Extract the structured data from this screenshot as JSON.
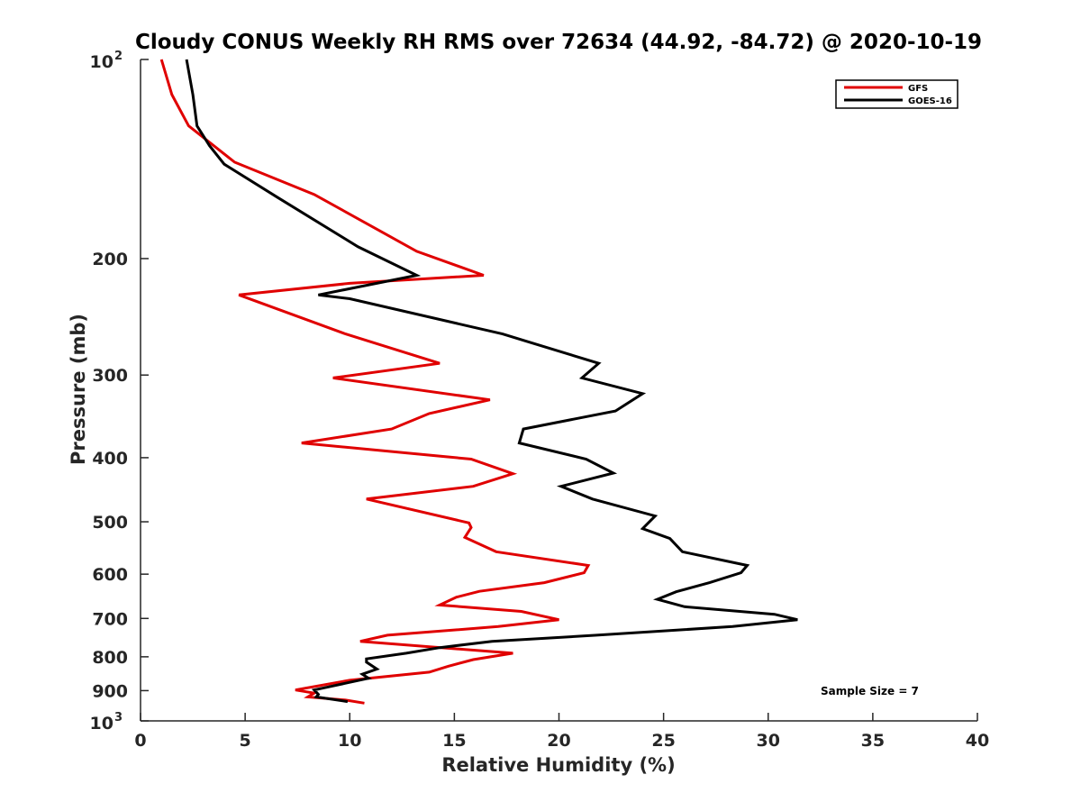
{
  "chart_data": {
    "type": "line",
    "title": "Cloudy CONUS Weekly RH RMS over 72634 (44.92, -84.72) @ 2020-10-19",
    "xlabel": "Relative Humidity (%)",
    "ylabel": "Pressure (mb)",
    "xlim": [
      0,
      40
    ],
    "ylim": [
      100,
      1000
    ],
    "y_scale": "log",
    "y_reversed": true,
    "grid": false,
    "legend_placement": "top-right",
    "x_ticks": [
      "0",
      "5",
      "10",
      "15",
      "20",
      "25",
      "30",
      "35",
      "40"
    ],
    "y_ticks": [
      {
        "value": 100,
        "base": "10",
        "exp": "2"
      },
      {
        "value": 200,
        "label": "200"
      },
      {
        "value": 300,
        "label": "300"
      },
      {
        "value": 400,
        "label": "400"
      },
      {
        "value": 500,
        "label": "500"
      },
      {
        "value": 600,
        "label": "600"
      },
      {
        "value": 700,
        "label": "700"
      },
      {
        "value": 800,
        "label": "800"
      },
      {
        "value": 900,
        "label": "900"
      },
      {
        "value": 1000,
        "base": "10",
        "exp": "3"
      }
    ],
    "series": [
      {
        "name": "GFS",
        "color": "#e00000",
        "points": [
          [
            1.0,
            100
          ],
          [
            1.5,
            113
          ],
          [
            2.3,
            126
          ],
          [
            4.5,
            143
          ],
          [
            8.3,
            160
          ],
          [
            13.2,
            195
          ],
          [
            16.4,
            212
          ],
          [
            10.0,
            218
          ],
          [
            4.7,
            227
          ],
          [
            9.8,
            260
          ],
          [
            14.3,
            288
          ],
          [
            9.2,
            303
          ],
          [
            16.7,
            327
          ],
          [
            13.8,
            343
          ],
          [
            12.0,
            362
          ],
          [
            7.7,
            380
          ],
          [
            15.8,
            402
          ],
          [
            17.8,
            423
          ],
          [
            15.9,
            442
          ],
          [
            10.8,
            462
          ],
          [
            15.7,
            502
          ],
          [
            15.8,
            510
          ],
          [
            15.5,
            528
          ],
          [
            17.0,
            555
          ],
          [
            21.4,
            582
          ],
          [
            21.2,
            597
          ],
          [
            19.3,
            618
          ],
          [
            16.2,
            637
          ],
          [
            15.1,
            650
          ],
          [
            14.3,
            668
          ],
          [
            18.2,
            683
          ],
          [
            20.0,
            703
          ],
          [
            17.1,
            720
          ],
          [
            11.8,
            742
          ],
          [
            10.5,
            758
          ],
          [
            17.8,
            790
          ],
          [
            15.9,
            808
          ],
          [
            14.7,
            827
          ],
          [
            13.8,
            844
          ],
          [
            10.0,
            868
          ],
          [
            7.4,
            898
          ],
          [
            8.3,
            908
          ],
          [
            8.0,
            920
          ],
          [
            9.8,
            930
          ],
          [
            10.7,
            940
          ]
        ]
      },
      {
        "name": "GOES-16",
        "color": "#000000",
        "points": [
          [
            2.2,
            100
          ],
          [
            2.5,
            113
          ],
          [
            2.7,
            126
          ],
          [
            3.3,
            135
          ],
          [
            4.0,
            144
          ],
          [
            6.6,
            162
          ],
          [
            10.4,
            192
          ],
          [
            13.2,
            212
          ],
          [
            8.5,
            227
          ],
          [
            10.0,
            230
          ],
          [
            17.3,
            260
          ],
          [
            21.9,
            288
          ],
          [
            21.1,
            303
          ],
          [
            24.0,
            320
          ],
          [
            22.7,
            340
          ],
          [
            18.3,
            362
          ],
          [
            18.1,
            380
          ],
          [
            21.3,
            402
          ],
          [
            22.6,
            422
          ],
          [
            20.1,
            442
          ],
          [
            21.6,
            462
          ],
          [
            24.6,
            490
          ],
          [
            24.0,
            512
          ],
          [
            25.3,
            530
          ],
          [
            25.9,
            555
          ],
          [
            29.0,
            582
          ],
          [
            28.7,
            597
          ],
          [
            27.2,
            618
          ],
          [
            25.6,
            638
          ],
          [
            24.7,
            655
          ],
          [
            26.0,
            672
          ],
          [
            30.3,
            690
          ],
          [
            31.4,
            703
          ],
          [
            28.3,
            720
          ],
          [
            21.8,
            742
          ],
          [
            16.8,
            758
          ],
          [
            14.3,
            775
          ],
          [
            12.7,
            790
          ],
          [
            10.8,
            806
          ],
          [
            10.8,
            815
          ],
          [
            11.3,
            835
          ],
          [
            10.6,
            850
          ],
          [
            10.9,
            862
          ],
          [
            8.3,
            898
          ],
          [
            8.5,
            912
          ],
          [
            8.4,
            920
          ],
          [
            9.9,
            935
          ]
        ]
      }
    ],
    "annotation": "Sample Size = 7"
  }
}
